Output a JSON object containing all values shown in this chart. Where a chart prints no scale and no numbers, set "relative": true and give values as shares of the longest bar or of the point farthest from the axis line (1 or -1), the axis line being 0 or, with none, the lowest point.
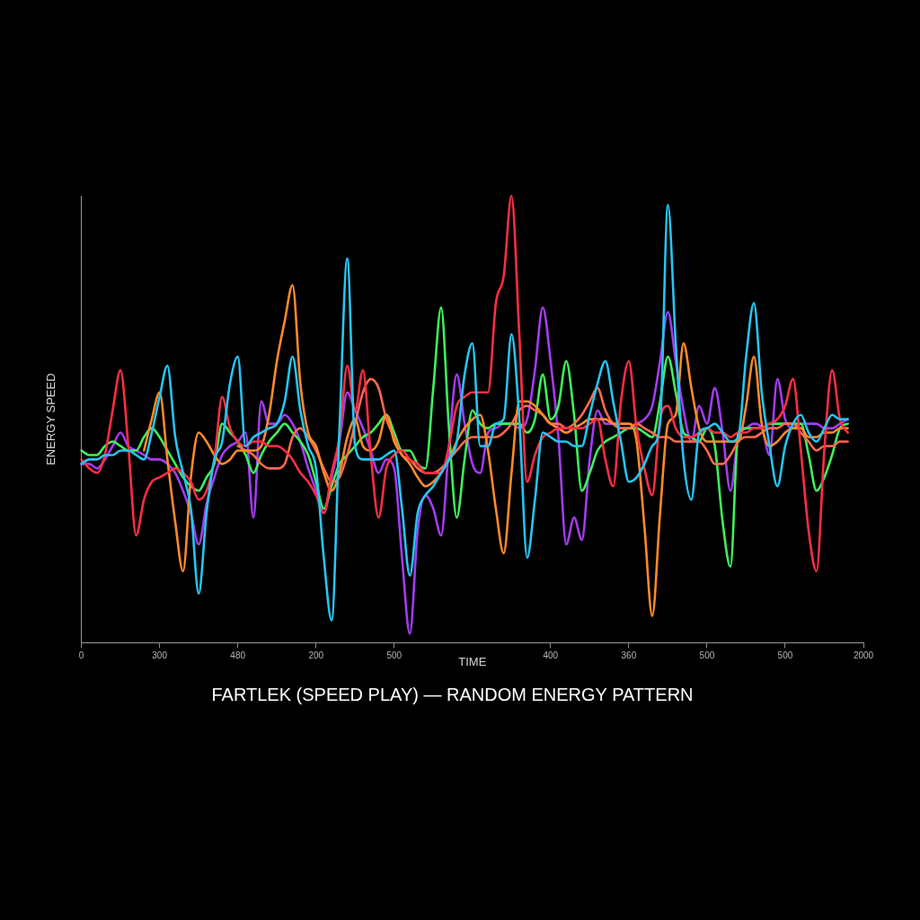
{
  "chart_data": {
    "type": "line",
    "title": "FARTLEK (SPEED PLAY) — RANDOM ENERGY PATTERN",
    "xlabel": "TIME",
    "ylabel": "ENERGY SPEED",
    "relative": true,
    "categories": [
      "0",
      null,
      null,
      null,
      null,
      null,
      null,
      null,
      null,
      null,
      "300",
      null,
      null,
      null,
      null,
      null,
      null,
      null,
      null,
      null,
      "480",
      null,
      null,
      null,
      null,
      null,
      null,
      null,
      null,
      null,
      "200",
      null,
      null,
      null,
      null,
      null,
      null,
      null,
      null,
      null,
      "500",
      null,
      null,
      null,
      null,
      null,
      null,
      null,
      null,
      null,
      null,
      null,
      null,
      null,
      null,
      null,
      null,
      null,
      null,
      null,
      "400",
      null,
      null,
      null,
      null,
      null,
      null,
      null,
      null,
      null,
      "360",
      null,
      null,
      null,
      null,
      null,
      null,
      null,
      null,
      null,
      "500",
      null,
      null,
      null,
      null,
      null,
      null,
      null,
      null,
      null,
      "500",
      null,
      null,
      null,
      null,
      null,
      null,
      null,
      null,
      null,
      "2000"
    ],
    "series": [
      {
        "color": "#25c5f2",
        "values": [
          0.4,
          0.41,
          0.41,
          0.42,
          0.42,
          0.43,
          0.43,
          0.42,
          0.41,
          0.47,
          0.55,
          0.62,
          0.46,
          0.38,
          0.3,
          0.11,
          0.29,
          0.41,
          0.45,
          0.58,
          0.64,
          0.44,
          0.46,
          0.47,
          0.48,
          0.49,
          0.54,
          0.64,
          0.52,
          0.44,
          0.39,
          0.19,
          0.05,
          0.48,
          0.86,
          0.44,
          0.41,
          0.41,
          0.41,
          0.42,
          0.43,
          0.3,
          0.15,
          0.29,
          0.33,
          0.35,
          0.38,
          0.41,
          0.45,
          0.6,
          0.67,
          0.44,
          0.44,
          0.49,
          0.5,
          0.69,
          0.5,
          0.19,
          0.32,
          0.47,
          0.46,
          0.45,
          0.45,
          0.44,
          0.44,
          0.51,
          0.58,
          0.63,
          0.54,
          0.45,
          0.36,
          0.37,
          0.4,
          0.44,
          0.49,
          0.98,
          0.67,
          0.41,
          0.32,
          0.47,
          0.48,
          0.49,
          0.47,
          0.45,
          0.46,
          0.64,
          0.76,
          0.56,
          0.44,
          0.35,
          0.44,
          0.49,
          0.51,
          0.47,
          0.45,
          0.48,
          0.51,
          0.5,
          0.5,
          null,
          null
        ]
      },
      {
        "color": "#ff2e44",
        "values": [
          0.41,
          0.39,
          0.38,
          0.42,
          0.52,
          0.61,
          0.44,
          0.24,
          0.32,
          0.36,
          0.37,
          0.38,
          0.39,
          0.38,
          0.36,
          0.32,
          0.34,
          0.41,
          0.55,
          0.48,
          0.45,
          0.44,
          0.45,
          0.45,
          0.44,
          0.44,
          0.43,
          0.41,
          0.38,
          0.36,
          0.33,
          0.29,
          0.38,
          0.46,
          0.62,
          0.52,
          0.61,
          0.42,
          0.28,
          0.39,
          0.42,
          0.43,
          0.41,
          0.4,
          0.38,
          0.38,
          0.38,
          0.44,
          0.53,
          0.55,
          0.56,
          0.56,
          0.56,
          0.76,
          0.82,
          1,
          0.69,
          0.36,
          0.42,
          0.46,
          0.47,
          0.48,
          0.48,
          0.48,
          0.48,
          0.49,
          0.5,
          0.41,
          0.35,
          0.54,
          0.63,
          0.48,
          0.39,
          0.33,
          0.5,
          0.53,
          0.48,
          0.46,
          0.46,
          0.47,
          0.48,
          0.47,
          0.47,
          0.46,
          0.47,
          0.47,
          0.48,
          0.48,
          0.49,
          0.5,
          0.53,
          0.59,
          0.43,
          0.25,
          0.16,
          0.43,
          0.61,
          0.5,
          0.47,
          null,
          null
        ]
      },
      {
        "color": "#ff8a2a",
        "values": [
          null,
          null,
          null,
          null,
          null,
          null,
          null,
          null,
          0.43,
          0.5,
          0.56,
          0.41,
          0.27,
          0.16,
          0.37,
          0.47,
          0.45,
          0.42,
          0.4,
          0.41,
          0.43,
          0.43,
          0.43,
          0.44,
          0.51,
          0.63,
          0.72,
          0.8,
          0.58,
          0.47,
          0.44,
          0.38,
          0.34,
          0.38,
          0.46,
          0.5,
          0.44,
          0.43,
          0.45,
          0.51,
          0.45,
          0.42,
          0.4,
          0.37,
          0.35,
          0.36,
          0.38,
          0.41,
          0.45,
          0.48,
          0.5,
          0.51,
          0.43,
          0.3,
          0.2,
          0.38,
          0.54,
          0.54,
          0.53,
          0.51,
          0.49,
          0.48,
          0.47,
          0.48,
          0.49,
          0.5,
          0.5,
          0.5,
          0.49,
          0.49,
          0.49,
          0.45,
          0.26,
          0.06,
          0.29,
          0.49,
          0.51,
          0.67,
          0.57,
          0.48,
          0.45,
          0.45,
          0.45,
          0.45,
          0.45,
          0.53,
          0.64,
          0.49,
          0.44,
          0.45,
          0.47,
          0.48,
          0.48,
          0.46,
          0.46,
          0.47,
          0.47,
          0.48,
          0.48,
          null,
          null
        ]
      },
      {
        "color": "#ff6a4d",
        "values": [
          null,
          null,
          null,
          null,
          null,
          null,
          null,
          null,
          null,
          null,
          null,
          null,
          null,
          null,
          null,
          null,
          null,
          null,
          null,
          null,
          0.44,
          0.43,
          0.42,
          0.4,
          0.39,
          0.39,
          0.4,
          0.46,
          0.48,
          0.46,
          0.43,
          0.39,
          0.36,
          0.37,
          0.42,
          0.49,
          0.56,
          0.59,
          0.57,
          0.5,
          0.46,
          0.42,
          0.41,
          0.39,
          0.38,
          0.38,
          0.39,
          0.41,
          0.43,
          0.45,
          0.46,
          0.46,
          0.46,
          0.46,
          0.47,
          0.49,
          0.52,
          0.53,
          0.52,
          0.51,
          0.49,
          0.49,
          0.48,
          0.49,
          0.51,
          0.54,
          0.57,
          0.52,
          0.49,
          0.48,
          0.48,
          0.49,
          0.48,
          0.47,
          0.46,
          0.46,
          0.45,
          0.45,
          0.45,
          0.45,
          0.43,
          0.4,
          0.4,
          0.42,
          0.45,
          0.46,
          0.46,
          0.47,
          0.48,
          0.48,
          0.49,
          0.49,
          0.47,
          0.45,
          0.43,
          0.44,
          0.44,
          0.45,
          0.45,
          null,
          null
        ]
      },
      {
        "color": "#3df25c",
        "values": [
          0.43,
          0.42,
          0.42,
          0.44,
          0.45,
          0.44,
          0.43,
          0.43,
          0.46,
          0.48,
          0.46,
          0.43,
          0.4,
          0.37,
          0.35,
          0.34,
          0.37,
          0.4,
          0.49,
          0.47,
          0.45,
          0.42,
          0.38,
          0.42,
          0.45,
          0.47,
          0.49,
          0.47,
          0.45,
          0.42,
          0.36,
          0.3,
          0.35,
          0.4,
          0.42,
          0.44,
          0.46,
          0.47,
          0.49,
          0.51,
          0.47,
          0.43,
          0.43,
          0.4,
          0.39,
          0.57,
          0.75,
          0.48,
          0.28,
          0.41,
          0.52,
          0.49,
          0.48,
          0.49,
          0.49,
          0.49,
          0.49,
          0.47,
          0.5,
          0.6,
          0.5,
          0.53,
          0.63,
          0.51,
          0.34,
          0.38,
          0.43,
          0.45,
          0.46,
          0.47,
          0.48,
          0.48,
          0.47,
          0.46,
          0.54,
          0.64,
          0.56,
          0.47,
          0.46,
          0.45,
          0.48,
          0.44,
          0.27,
          0.17,
          0.47,
          0.48,
          0.48,
          0.48,
          0.49,
          0.49,
          0.49,
          0.49,
          0.49,
          0.42,
          0.34,
          0.37,
          0.42,
          0.48,
          0.49,
          null,
          null
        ]
      },
      {
        "color": "#a43cf2",
        "values": [
          0.4,
          0.4,
          0.39,
          0.41,
          0.44,
          0.47,
          0.44,
          0.43,
          0.42,
          0.41,
          0.41,
          0.4,
          0.38,
          0.34,
          0.29,
          0.22,
          0.31,
          0.37,
          0.42,
          0.44,
          0.45,
          0.47,
          0.28,
          0.54,
          0.49,
          0.49,
          0.51,
          0.49,
          0.45,
          0.39,
          0.34,
          0.29,
          0.37,
          0.45,
          0.56,
          0.52,
          0.48,
          0.43,
          0.38,
          0.41,
          0.39,
          0.19,
          0.02,
          0.25,
          0.33,
          0.3,
          0.24,
          0.44,
          0.6,
          0.49,
          0.4,
          0.38,
          0.47,
          0.48,
          0.49,
          0.49,
          0.48,
          0.5,
          0.61,
          0.75,
          0.63,
          0.46,
          0.22,
          0.28,
          0.23,
          0.41,
          0.52,
          0.49,
          0.49,
          0.48,
          0.48,
          0.49,
          0.5,
          0.53,
          0.63,
          0.74,
          0.63,
          0.52,
          0.45,
          0.53,
          0.49,
          0.57,
          0.47,
          0.34,
          0.46,
          0.48,
          0.49,
          0.48,
          0.42,
          0.59,
          0.5,
          0.48,
          0.49,
          0.49,
          0.49,
          0.48,
          0.48,
          0.49,
          0.5,
          null,
          null
        ]
      }
    ]
  }
}
